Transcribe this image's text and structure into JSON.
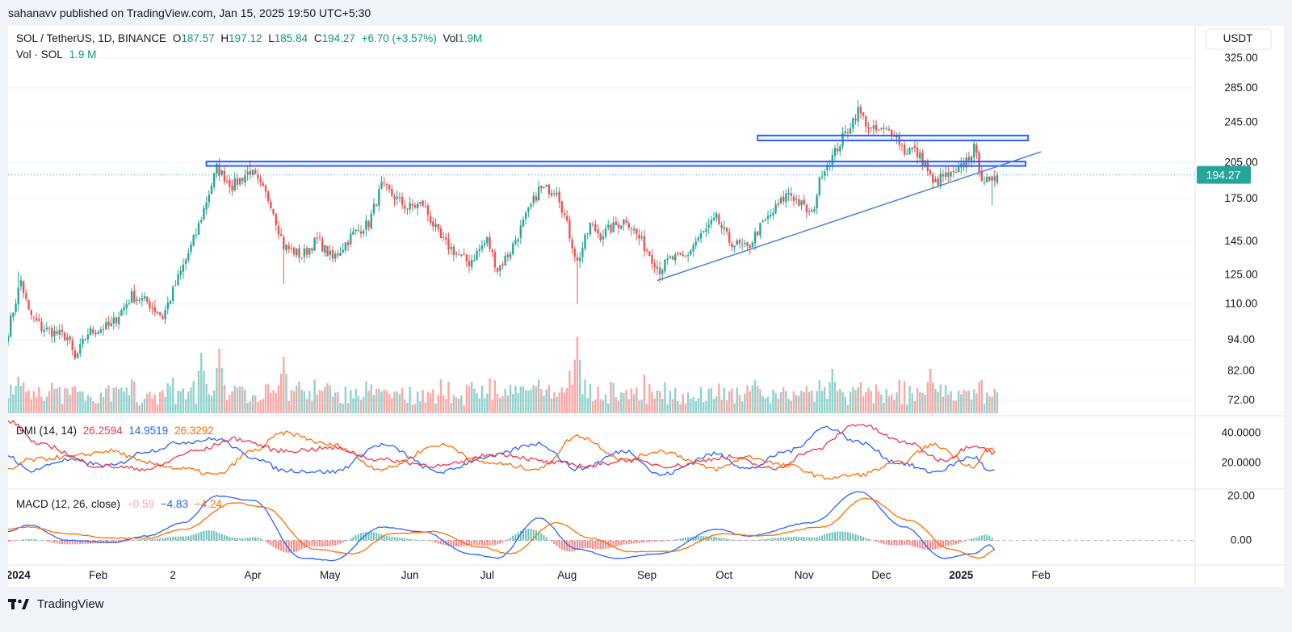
{
  "credit": "sahanavv published on TradingView.com, Jan 15, 2025 19:50 UTC+5:30",
  "legend": {
    "symbol": "SOL / TetherUS, 1D, BINANCE",
    "o_label": "O",
    "o_value": "187.57",
    "h_label": "H",
    "h_value": "197.12",
    "l_label": "L",
    "l_value": "185.84",
    "c_label": "C",
    "c_value": "194.27",
    "change": "+6.70 (+3.57%)",
    "vol_label": "Vol",
    "vol_value": "1.9M",
    "vol2_label": "Vol · SOL",
    "vol2_value": "1.9 M"
  },
  "dmi_legend": {
    "label": "DMI (14, 14)",
    "v1": "26.2594",
    "v2": "14.9519",
    "v3": "26.3292"
  },
  "macd_legend": {
    "label": "MACD (12, 26, close)",
    "v1": "−0.59",
    "v2": "−4.83",
    "v3": "−4.24"
  },
  "footer": {
    "brand": "TradingView"
  },
  "colors": {
    "up": "#26a69a",
    "down": "#ef5350",
    "ann": "#2962ff",
    "trend": "#4a7fe0",
    "dmi_plus": "#2962ff",
    "dmi_minus": "#ff6d00",
    "adx": "#f23645",
    "macd": "#2962ff",
    "signal": "#ff6d00"
  },
  "chart_data": [
    {
      "type": "candlestick",
      "title": "SOL / TetherUS, 1D, BINANCE",
      "y_scale": "log",
      "ylim": [
        68,
        345
      ],
      "currency_label": "USDT",
      "y_ticks": [
        "325.00",
        "285.00",
        "245.00",
        "205.00",
        "175.00",
        "145.00",
        "125.00",
        "110.00",
        "94.00",
        "82.00",
        "72.00"
      ],
      "x_ticks": [
        "2024",
        "Feb",
        "2",
        "Apr",
        "May",
        "Jun",
        "Jul",
        "Aug",
        "Sep",
        "Oct",
        "Nov",
        "Dec",
        "2025",
        "Feb"
      ],
      "last_price": "194.27",
      "anchors": [
        [
          "2023-12-28",
          98
        ],
        [
          "2024-01-02",
          122
        ],
        [
          "2024-01-05",
          106
        ],
        [
          "2024-01-10",
          99
        ],
        [
          "2024-01-20",
          95
        ],
        [
          "2024-01-23",
          86
        ],
        [
          "2024-01-28",
          97
        ],
        [
          "2024-02-06",
          100
        ],
        [
          "2024-02-14",
          114
        ],
        [
          "2024-02-20",
          111
        ],
        [
          "2024-02-26",
          104
        ],
        [
          "2024-03-05",
          130
        ],
        [
          "2024-03-10",
          150
        ],
        [
          "2024-03-18",
          200
        ],
        [
          "2024-03-24",
          185
        ],
        [
          "2024-03-31",
          198
        ],
        [
          "2024-04-08",
          172
        ],
        [
          "2024-04-13",
          142
        ],
        [
          "2024-04-20",
          136
        ],
        [
          "2024-04-26",
          146
        ],
        [
          "2024-05-02",
          134
        ],
        [
          "2024-05-10",
          150
        ],
        [
          "2024-05-16",
          157
        ],
        [
          "2024-05-21",
          185
        ],
        [
          "2024-05-31",
          168
        ],
        [
          "2024-06-06",
          171
        ],
        [
          "2024-06-13",
          146
        ],
        [
          "2024-06-21",
          135
        ],
        [
          "2024-06-24",
          132
        ],
        [
          "2024-07-01",
          146
        ],
        [
          "2024-07-05",
          128
        ],
        [
          "2024-07-10",
          139
        ],
        [
          "2024-07-21",
          182
        ],
        [
          "2024-07-28",
          183
        ],
        [
          "2024-08-05",
          132
        ],
        [
          "2024-08-10",
          156
        ],
        [
          "2024-08-14",
          149
        ],
        [
          "2024-08-24",
          160
        ],
        [
          "2024-09-06",
          128
        ],
        [
          "2024-09-10",
          134
        ],
        [
          "2024-09-16",
          135
        ],
        [
          "2024-09-20",
          145
        ],
        [
          "2024-09-28",
          160
        ],
        [
          "2024-10-03",
          145
        ],
        [
          "2024-10-10",
          140
        ],
        [
          "2024-10-14",
          152
        ],
        [
          "2024-10-20",
          165
        ],
        [
          "2024-10-26",
          180
        ],
        [
          "2024-10-31",
          170
        ],
        [
          "2024-11-04",
          162
        ],
        [
          "2024-11-08",
          198
        ],
        [
          "2024-11-12",
          210
        ],
        [
          "2024-11-18",
          238
        ],
        [
          "2024-11-22",
          258
        ],
        [
          "2024-11-27",
          236
        ],
        [
          "2024-12-06",
          235
        ],
        [
          "2024-12-10",
          215
        ],
        [
          "2024-12-13",
          218
        ],
        [
          "2024-12-18",
          205
        ],
        [
          "2024-12-21",
          186
        ],
        [
          "2024-12-25",
          193
        ],
        [
          "2024-12-30",
          194
        ],
        [
          "2025-01-06",
          218
        ],
        [
          "2025-01-09",
          193
        ],
        [
          "2025-01-12",
          186
        ],
        [
          "2025-01-15",
          194
        ]
      ],
      "events": [
        [
          "2024-01-01",
          127,
          "high"
        ],
        [
          "2024-03-19",
          209,
          "high"
        ],
        [
          "2024-03-31",
          207,
          "high"
        ],
        [
          "2024-04-13",
          120,
          "low"
        ],
        [
          "2024-08-05",
          110,
          "low"
        ],
        [
          "2024-09-06",
          121,
          "low"
        ],
        [
          "2024-11-23",
          265,
          "high"
        ],
        [
          "2025-01-13",
          170,
          "low"
        ]
      ],
      "annotations": [
        {
          "type": "box",
          "from": "2024-03-14",
          "to": "2025-01-26",
          "low": 202,
          "high": 206
        },
        {
          "type": "box",
          "from": "2024-10-14",
          "to": "2025-01-27",
          "low": 226,
          "high": 231
        },
        {
          "type": "trendline",
          "from": [
            "2024-09-05",
            122
          ],
          "to": [
            "2025-02-01",
            215
          ]
        }
      ],
      "volume": {
        "unit": "SOL",
        "last": "1.9M",
        "spikes": [
          "2024-03-12",
          "2024-03-19",
          "2024-04-13",
          "2024-08-05",
          "2024-11-12",
          "2024-12-20"
        ]
      }
    },
    {
      "type": "line",
      "title": "DMI (14, 14)",
      "y_ticks": [
        "40.0000",
        "20.0000"
      ],
      "ylim": [
        3,
        50
      ],
      "series": [
        {
          "name": "+DI",
          "color": "#2962ff",
          "last": 14.9519,
          "points": [
            [
              "2023-12-28",
              25
            ],
            [
              "2024-01-05",
              15
            ],
            [
              "2024-01-20",
              22
            ],
            [
              "2024-02-06",
              18
            ],
            [
              "2024-02-20",
              28
            ],
            [
              "2024-03-05",
              34
            ],
            [
              "2024-03-18",
              36
            ],
            [
              "2024-04-01",
              24
            ],
            [
              "2024-04-13",
              15
            ],
            [
              "2024-05-02",
              14
            ],
            [
              "2024-05-21",
              32
            ],
            [
              "2024-06-13",
              14
            ],
            [
              "2024-07-01",
              24
            ],
            [
              "2024-07-21",
              33
            ],
            [
              "2024-08-05",
              16
            ],
            [
              "2024-08-24",
              28
            ],
            [
              "2024-09-06",
              12
            ],
            [
              "2024-09-28",
              26
            ],
            [
              "2024-10-10",
              16
            ],
            [
              "2024-10-26",
              28
            ],
            [
              "2024-11-10",
              44
            ],
            [
              "2024-11-22",
              34
            ],
            [
              "2024-12-08",
              20
            ],
            [
              "2024-12-21",
              14
            ],
            [
              "2025-01-06",
              24
            ],
            [
              "2025-01-12",
              14
            ],
            [
              "2025-01-15",
              15
            ]
          ]
        },
        {
          "name": "−DI",
          "color": "#ff6d00",
          "last": 26.3292,
          "points": [
            [
              "2023-12-28",
              15
            ],
            [
              "2024-01-05",
              22
            ],
            [
              "2024-01-20",
              24
            ],
            [
              "2024-02-06",
              28
            ],
            [
              "2024-02-20",
              20
            ],
            [
              "2024-03-05",
              16
            ],
            [
              "2024-03-18",
              12
            ],
            [
              "2024-04-01",
              28
            ],
            [
              "2024-04-13",
              40
            ],
            [
              "2024-05-02",
              32
            ],
            [
              "2024-05-21",
              16
            ],
            [
              "2024-06-13",
              32
            ],
            [
              "2024-07-01",
              20
            ],
            [
              "2024-07-21",
              16
            ],
            [
              "2024-08-05",
              38
            ],
            [
              "2024-08-24",
              22
            ],
            [
              "2024-09-06",
              28
            ],
            [
              "2024-09-28",
              16
            ],
            [
              "2024-10-10",
              24
            ],
            [
              "2024-10-26",
              18
            ],
            [
              "2024-11-10",
              10
            ],
            [
              "2024-11-22",
              12
            ],
            [
              "2024-12-08",
              20
            ],
            [
              "2024-12-21",
              32
            ],
            [
              "2025-01-06",
              18
            ],
            [
              "2025-01-12",
              30
            ],
            [
              "2025-01-15",
              26
            ]
          ]
        },
        {
          "name": "ADX",
          "color": "#f23645",
          "last": 26.2594,
          "points": [
            [
              "2023-12-28",
              48
            ],
            [
              "2024-01-10",
              32
            ],
            [
              "2024-02-01",
              18
            ],
            [
              "2024-02-20",
              16
            ],
            [
              "2024-03-10",
              28
            ],
            [
              "2024-03-25",
              36
            ],
            [
              "2024-04-13",
              28
            ],
            [
              "2024-05-02",
              30
            ],
            [
              "2024-05-21",
              22
            ],
            [
              "2024-06-13",
              18
            ],
            [
              "2024-07-05",
              26
            ],
            [
              "2024-07-28",
              20
            ],
            [
              "2024-08-10",
              18
            ],
            [
              "2024-08-24",
              22
            ],
            [
              "2024-09-10",
              18
            ],
            [
              "2024-10-03",
              24
            ],
            [
              "2024-10-20",
              16
            ],
            [
              "2024-11-04",
              28
            ],
            [
              "2024-11-22",
              46
            ],
            [
              "2024-12-10",
              34
            ],
            [
              "2024-12-25",
              22
            ],
            [
              "2025-01-06",
              32
            ],
            [
              "2025-01-15",
              26
            ]
          ]
        }
      ]
    },
    {
      "type": "line",
      "title": "MACD (12, 26, close)",
      "y_ticks": [
        "20.00",
        "0.00"
      ],
      "ylim": [
        -10,
        22
      ],
      "series": [
        {
          "name": "MACD",
          "color": "#2962ff",
          "last": -4.83,
          "points": [
            [
              "2023-12-28",
              4
            ],
            [
              "2024-01-05",
              7
            ],
            [
              "2024-01-20",
              0
            ],
            [
              "2024-02-06",
              -1
            ],
            [
              "2024-02-20",
              2
            ],
            [
              "2024-03-05",
              8
            ],
            [
              "2024-03-18",
              20
            ],
            [
              "2024-04-01",
              18
            ],
            [
              "2024-04-20",
              -8
            ],
            [
              "2024-05-02",
              -9
            ],
            [
              "2024-05-21",
              6
            ],
            [
              "2024-06-06",
              4
            ],
            [
              "2024-06-24",
              -6
            ],
            [
              "2024-07-05",
              -8
            ],
            [
              "2024-07-21",
              10
            ],
            [
              "2024-08-05",
              -4
            ],
            [
              "2024-08-20",
              -8
            ],
            [
              "2024-09-06",
              -6
            ],
            [
              "2024-09-28",
              5
            ],
            [
              "2024-10-10",
              2
            ],
            [
              "2024-11-04",
              8
            ],
            [
              "2024-11-22",
              22
            ],
            [
              "2024-12-10",
              6
            ],
            [
              "2024-12-25",
              -8
            ],
            [
              "2025-01-06",
              -6
            ],
            [
              "2025-01-12",
              -2
            ],
            [
              "2025-01-15",
              -5
            ]
          ]
        },
        {
          "name": "Signal",
          "color": "#ff6d00",
          "last": -4.24,
          "points": [
            [
              "2023-12-28",
              5
            ],
            [
              "2024-01-05",
              6
            ],
            [
              "2024-01-20",
              3
            ],
            [
              "2024-02-06",
              1
            ],
            [
              "2024-02-20",
              1
            ],
            [
              "2024-03-05",
              5
            ],
            [
              "2024-03-25",
              17
            ],
            [
              "2024-04-05",
              15
            ],
            [
              "2024-04-25",
              -4
            ],
            [
              "2024-05-10",
              -6
            ],
            [
              "2024-05-25",
              3
            ],
            [
              "2024-06-10",
              4
            ],
            [
              "2024-06-28",
              -3
            ],
            [
              "2024-07-10",
              -6
            ],
            [
              "2024-07-28",
              8
            ],
            [
              "2024-08-10",
              1
            ],
            [
              "2024-08-25",
              -5
            ],
            [
              "2024-09-10",
              -5
            ],
            [
              "2024-10-01",
              3
            ],
            [
              "2024-10-15",
              2
            ],
            [
              "2024-11-08",
              6
            ],
            [
              "2024-11-25",
              19
            ],
            [
              "2024-12-12",
              9
            ],
            [
              "2024-12-28",
              -4
            ],
            [
              "2025-01-08",
              -8
            ],
            [
              "2025-01-15",
              -4
            ]
          ]
        }
      ]
    }
  ]
}
